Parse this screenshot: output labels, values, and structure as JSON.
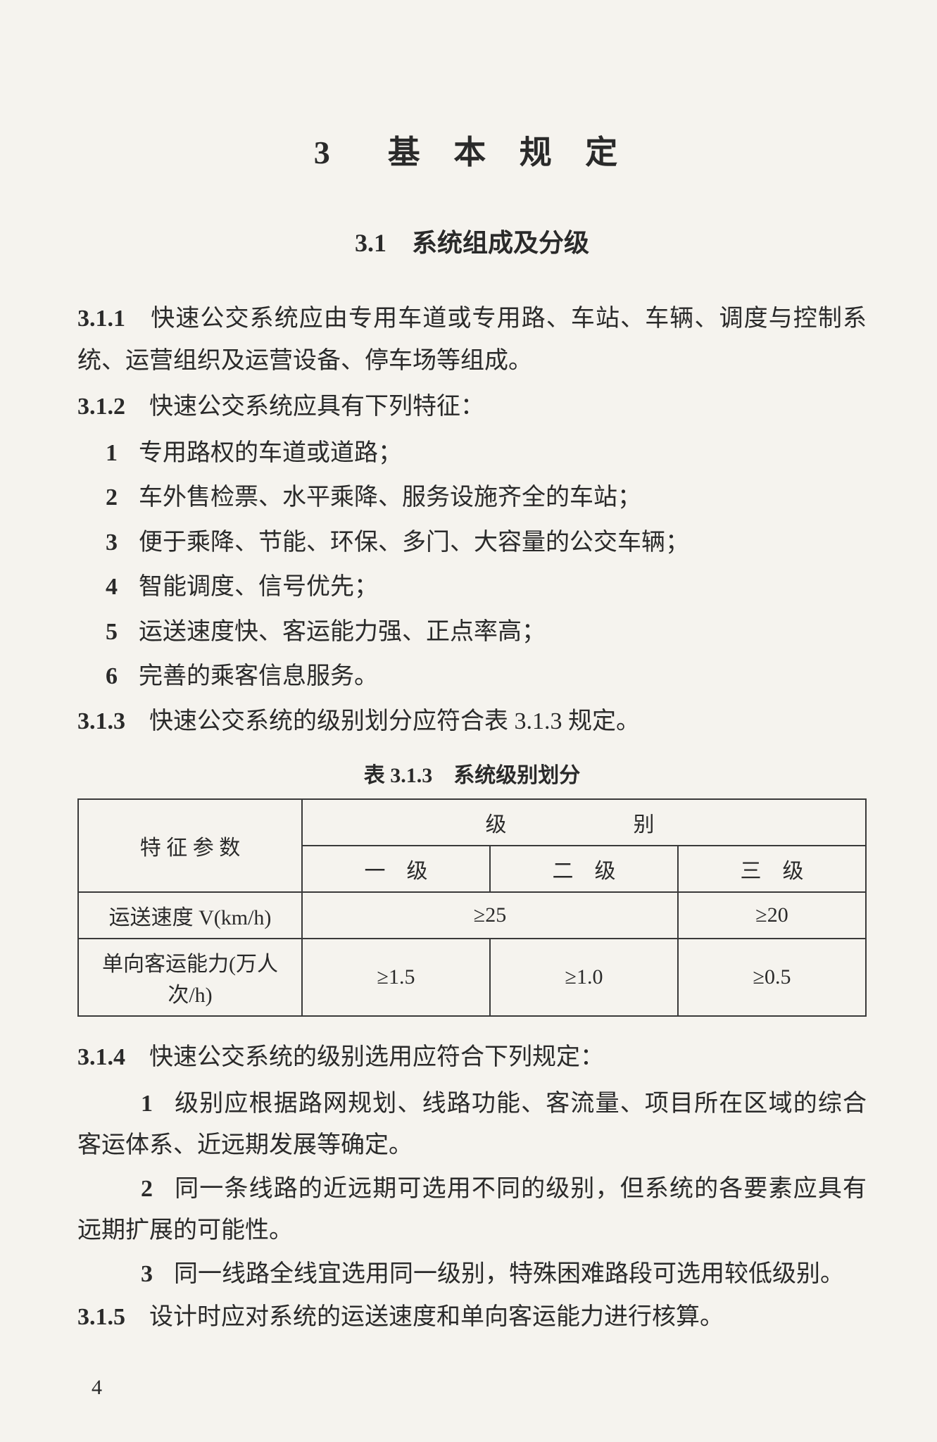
{
  "chapter": {
    "number": "3",
    "title": "基 本 规 定"
  },
  "section": {
    "number": "3.1",
    "title": "系统组成及分级"
  },
  "clauses": {
    "c311": {
      "num": "3.1.1",
      "text": "快速公交系统应由专用车道或专用路、车站、车辆、调度与控制系统、运营组织及运营设备、停车场等组成。"
    },
    "c312": {
      "num": "3.1.2",
      "text": "快速公交系统应具有下列特征：",
      "items": [
        {
          "n": "1",
          "t": "专用路权的车道或道路；"
        },
        {
          "n": "2",
          "t": "车外售检票、水平乘降、服务设施齐全的车站；"
        },
        {
          "n": "3",
          "t": "便于乘降、节能、环保、多门、大容量的公交车辆；"
        },
        {
          "n": "4",
          "t": "智能调度、信号优先；"
        },
        {
          "n": "5",
          "t": "运送速度快、客运能力强、正点率高；"
        },
        {
          "n": "6",
          "t": "完善的乘客信息服务。"
        }
      ]
    },
    "c313": {
      "num": "3.1.3",
      "text": "快速公交系统的级别划分应符合表 3.1.3 规定。"
    },
    "c314": {
      "num": "3.1.4",
      "text": "快速公交系统的级别选用应符合下列规定：",
      "items": [
        {
          "n": "1",
          "t": "级别应根据路网规划、线路功能、客流量、项目所在区域的综合客运体系、近远期发展等确定。"
        },
        {
          "n": "2",
          "t": "同一条线路的近远期可选用不同的级别，但系统的各要素应具有远期扩展的可能性。"
        },
        {
          "n": "3",
          "t": "同一线路全线宜选用同一级别，特殊困难路段可选用较低级别。"
        }
      ]
    },
    "c315": {
      "num": "3.1.5",
      "text": "设计时应对系统的运送速度和单向客运能力进行核算。"
    }
  },
  "table": {
    "title": "表 3.1.3　系统级别划分",
    "header": {
      "param": "特 征 参 数",
      "level": "级　　别",
      "l1": "一　级",
      "l2": "二　级",
      "l3": "三　级"
    },
    "rows": [
      {
        "param": "运送速度 V(km/h)",
        "c1": "≥25",
        "c2_merged": true,
        "c3": "≥20"
      },
      {
        "param": "单向客运能力(万人次/h)",
        "c1": "≥1.5",
        "c2": "≥1.0",
        "c3": "≥0.5"
      }
    ]
  },
  "page_number": "4"
}
